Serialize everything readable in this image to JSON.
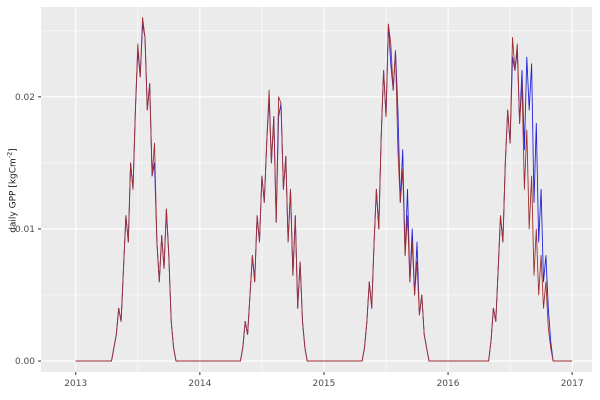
{
  "chart_data": {
    "type": "line",
    "title": "",
    "xlabel": "",
    "ylabel_main": "daily GPP [kgCm",
    "ylabel_sup": "-2",
    "ylabel_close": "]",
    "x_start": 2013,
    "points_per_year": 52,
    "x_ticks": [
      "2013",
      "2014",
      "2015",
      "2016",
      "2017"
    ],
    "x_tick_values": [
      2013,
      2014,
      2015,
      2016,
      2017
    ],
    "x_minor_values": [
      2013.5,
      2014.5,
      2015.5,
      2016.5
    ],
    "y_ticks": [
      "0.00",
      "0.01",
      "0.02"
    ],
    "y_tick_values": [
      0,
      0.01,
      0.02
    ],
    "y_minor_values": [
      0.005,
      0.015,
      0.025
    ],
    "xlim": [
      2012.72,
      2017.16
    ],
    "ylim": [
      -0.00083,
      0.0268
    ],
    "grid": true,
    "legend": "none",
    "panel_bg": "#ebebeb",
    "grid_color": "#ffffff",
    "tick_color": "#333333",
    "tick_label_color": "#4d4d4d",
    "series": [
      {
        "name": "blue",
        "color": "#2424d8",
        "values": [
          0,
          0,
          0,
          0,
          0,
          0,
          0,
          0,
          0,
          0,
          0,
          0,
          0,
          0,
          0,
          0,
          0.001,
          0.002,
          0.004,
          0.003,
          0.007,
          0.011,
          0.009,
          0.015,
          0.013,
          0.019,
          0.0235,
          0.0215,
          0.0255,
          0.0245,
          0.019,
          0.021,
          0.014,
          0.015,
          0.009,
          0.006,
          0.0095,
          0.007,
          0.0115,
          0.008,
          0.003,
          0.001,
          0,
          0,
          0,
          0,
          0,
          0,
          0,
          0,
          0,
          0,
          0,
          0,
          0,
          0,
          0,
          0,
          0,
          0,
          0,
          0,
          0,
          0,
          0,
          0,
          0,
          0,
          0,
          0,
          0.001,
          0.003,
          0.002,
          0.005,
          0.008,
          0.006,
          0.011,
          0.009,
          0.014,
          0.012,
          0.0165,
          0.02,
          0.015,
          0.0185,
          0.0105,
          0.0185,
          0.0195,
          0.013,
          0.0155,
          0.009,
          0.013,
          0.0065,
          0.011,
          0.004,
          0.0075,
          0.003,
          0.001,
          0,
          0,
          0,
          0,
          0,
          0,
          0,
          0,
          0,
          0,
          0,
          0,
          0,
          0,
          0,
          0,
          0,
          0,
          0,
          0,
          0,
          0,
          0,
          0,
          0.001,
          0.003,
          0.006,
          0.004,
          0.009,
          0.013,
          0.01,
          0.017,
          0.022,
          0.0185,
          0.0255,
          0.0225,
          0.0205,
          0.0235,
          0.019,
          0.012,
          0.016,
          0.008,
          0.013,
          0.006,
          0.01,
          0.005,
          0.009,
          0.0035,
          0.005,
          0.002,
          0.001,
          0,
          0,
          0,
          0,
          0,
          0,
          0,
          0,
          0,
          0,
          0,
          0,
          0,
          0,
          0,
          0,
          0,
          0,
          0,
          0,
          0,
          0,
          0,
          0,
          0,
          0,
          0.0015,
          0.004,
          0.003,
          0.007,
          0.011,
          0.009,
          0.015,
          0.019,
          0.0165,
          0.023,
          0.022,
          0.0235,
          0.018,
          0.022,
          0.016,
          0.023,
          0.019,
          0.0225,
          0.012,
          0.018,
          0.009,
          0.013,
          0.006,
          0.008,
          0.004,
          0.0015,
          0,
          0,
          0,
          0,
          0,
          0,
          0,
          0,
          0
        ]
      },
      {
        "name": "dark-red",
        "color": "#a03030",
        "values": [
          0,
          0,
          0,
          0,
          0,
          0,
          0,
          0,
          0,
          0,
          0,
          0,
          0,
          0,
          0,
          0,
          0.001,
          0.002,
          0.004,
          0.003,
          0.007,
          0.011,
          0.009,
          0.015,
          0.013,
          0.019,
          0.024,
          0.0215,
          0.026,
          0.0245,
          0.019,
          0.021,
          0.014,
          0.0165,
          0.009,
          0.006,
          0.0095,
          0.007,
          0.0115,
          0.008,
          0.003,
          0.001,
          0,
          0,
          0,
          0,
          0,
          0,
          0,
          0,
          0,
          0,
          0,
          0,
          0,
          0,
          0,
          0,
          0,
          0,
          0,
          0,
          0,
          0,
          0,
          0,
          0,
          0,
          0,
          0,
          0.001,
          0.003,
          0.002,
          0.005,
          0.008,
          0.006,
          0.011,
          0.009,
          0.014,
          0.012,
          0.0165,
          0.0205,
          0.015,
          0.0185,
          0.0105,
          0.02,
          0.0195,
          0.013,
          0.0155,
          0.009,
          0.013,
          0.0065,
          0.011,
          0.004,
          0.0075,
          0.003,
          0.001,
          0,
          0,
          0,
          0,
          0,
          0,
          0,
          0,
          0,
          0,
          0,
          0,
          0,
          0,
          0,
          0,
          0,
          0,
          0,
          0,
          0,
          0,
          0,
          0,
          0.001,
          0.003,
          0.006,
          0.004,
          0.009,
          0.013,
          0.01,
          0.017,
          0.022,
          0.0185,
          0.0255,
          0.024,
          0.0205,
          0.0235,
          0.016,
          0.012,
          0.0145,
          0.008,
          0.011,
          0.006,
          0.009,
          0.005,
          0.0075,
          0.0035,
          0.005,
          0.002,
          0.001,
          0,
          0,
          0,
          0,
          0,
          0,
          0,
          0,
          0,
          0,
          0,
          0,
          0,
          0,
          0,
          0,
          0,
          0,
          0,
          0,
          0,
          0,
          0,
          0,
          0,
          0,
          0.0015,
          0.004,
          0.003,
          0.007,
          0.011,
          0.009,
          0.015,
          0.019,
          0.0165,
          0.0245,
          0.022,
          0.024,
          0.018,
          0.021,
          0.013,
          0.0175,
          0.01,
          0.014,
          0.0065,
          0.01,
          0.005,
          0.008,
          0.004,
          0.006,
          0.0025,
          0.001,
          0,
          0,
          0,
          0,
          0,
          0,
          0,
          0,
          0
        ]
      }
    ]
  }
}
